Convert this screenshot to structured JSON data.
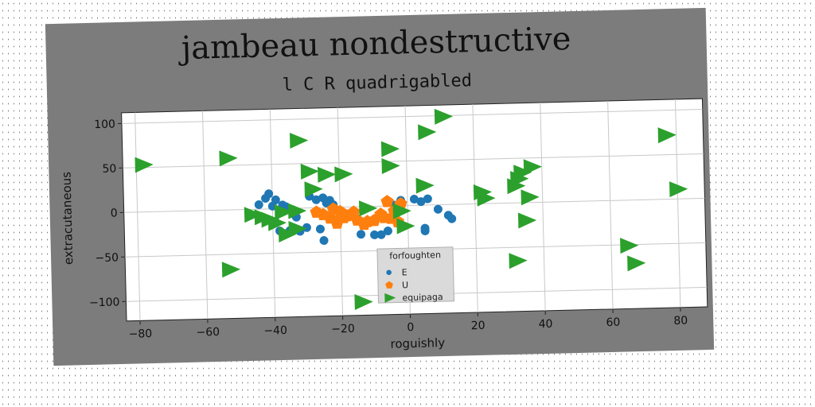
{
  "chart_data": {
    "type": "scatter",
    "title": "jambeau nondestructive",
    "subtitle": "l C R quadrigabled",
    "xlabel": "roguishly",
    "ylabel": "extracutaneous",
    "xlim": [
      -84,
      88
    ],
    "ylim": [
      -122,
      112
    ],
    "xticks": [
      -80,
      -60,
      -40,
      -20,
      0,
      20,
      40,
      60,
      80
    ],
    "yticks": [
      -100,
      -50,
      0,
      50,
      100
    ],
    "grid": true,
    "legend": {
      "title": "forfoughten",
      "placement": "bottom-center"
    },
    "series": [
      {
        "name": "E",
        "marker": "circle",
        "color": "#1f77b4",
        "points": [
          [
            -41,
            17
          ],
          [
            -42,
            12
          ],
          [
            -39,
            10
          ],
          [
            -44,
            5
          ],
          [
            -40,
            3
          ],
          [
            -37,
            4
          ],
          [
            -36,
            2
          ],
          [
            -34,
            -6
          ],
          [
            -33,
            -10
          ],
          [
            -30,
            -22
          ],
          [
            -32,
            -26
          ],
          [
            -35,
            -25
          ],
          [
            -38,
            -25
          ],
          [
            -29,
            13
          ],
          [
            -27,
            9
          ],
          [
            -25,
            11
          ],
          [
            -23,
            8
          ],
          [
            -22,
            3
          ],
          [
            -24,
            5
          ],
          [
            -26,
            -24
          ],
          [
            -25,
            -37
          ],
          [
            -14,
            -31
          ],
          [
            -10,
            -32
          ],
          [
            -8,
            -32
          ],
          [
            -6,
            -28
          ],
          [
            -4,
            1
          ],
          [
            -3,
            -2
          ],
          [
            -2,
            6
          ],
          [
            2,
            7
          ],
          [
            4,
            4
          ],
          [
            6,
            7
          ],
          [
            9,
            -5
          ],
          [
            12,
            -12
          ],
          [
            13,
            -16
          ],
          [
            5,
            -26
          ],
          [
            5,
            -29
          ]
        ]
      },
      {
        "name": "U",
        "marker": "pentagon",
        "color": "#ff7f0e",
        "points": [
          [
            -27,
            -5
          ],
          [
            -25,
            -8
          ],
          [
            -23,
            -12
          ],
          [
            -21,
            -18
          ],
          [
            -20,
            -5
          ],
          [
            -18,
            -10
          ],
          [
            -16,
            -6
          ],
          [
            -15,
            -15
          ],
          [
            -13,
            -20
          ],
          [
            -12,
            -17
          ],
          [
            -10,
            -16
          ],
          [
            -7,
            -13
          ],
          [
            -6,
            5
          ],
          [
            -5,
            -14
          ],
          [
            -3,
            -18
          ],
          [
            -2,
            2
          ],
          [
            -4,
            -6
          ],
          [
            -8,
            -9
          ],
          [
            -22,
            -2
          ],
          [
            -19,
            -12
          ]
        ]
      },
      {
        "name": "equipaga",
        "marker": "triangle-right",
        "color": "#2ca02c",
        "points": [
          [
            -78,
            53
          ],
          [
            -53,
            58
          ],
          [
            -32,
            76
          ],
          [
            -29,
            41
          ],
          [
            -28,
            21
          ],
          [
            -24,
            37
          ],
          [
            -19,
            37
          ],
          [
            -12,
            -2
          ],
          [
            -14,
            -107
          ],
          [
            -5,
            64
          ],
          [
            -5,
            45
          ],
          [
            -2,
            -6
          ],
          [
            -1,
            -23
          ],
          [
            5,
            22
          ],
          [
            6,
            82
          ],
          [
            11,
            99
          ],
          [
            22,
            13
          ],
          [
            23,
            6
          ],
          [
            32,
            19
          ],
          [
            33,
            27
          ],
          [
            34,
            34
          ],
          [
            37,
            40
          ],
          [
            32,
            -65
          ],
          [
            36,
            6
          ],
          [
            35,
            -20
          ],
          [
            65,
            -51
          ],
          [
            67,
            -71
          ],
          [
            77,
            72
          ],
          [
            80,
            11
          ],
          [
            -46,
            -6
          ],
          [
            -43,
            -9
          ],
          [
            -41,
            -12
          ],
          [
            -39,
            -16
          ],
          [
            -36,
            -29
          ],
          [
            -33,
            -23
          ],
          [
            -53,
            -67
          ],
          [
            -37,
            -4
          ],
          [
            -33,
            -3
          ]
        ]
      }
    ]
  }
}
